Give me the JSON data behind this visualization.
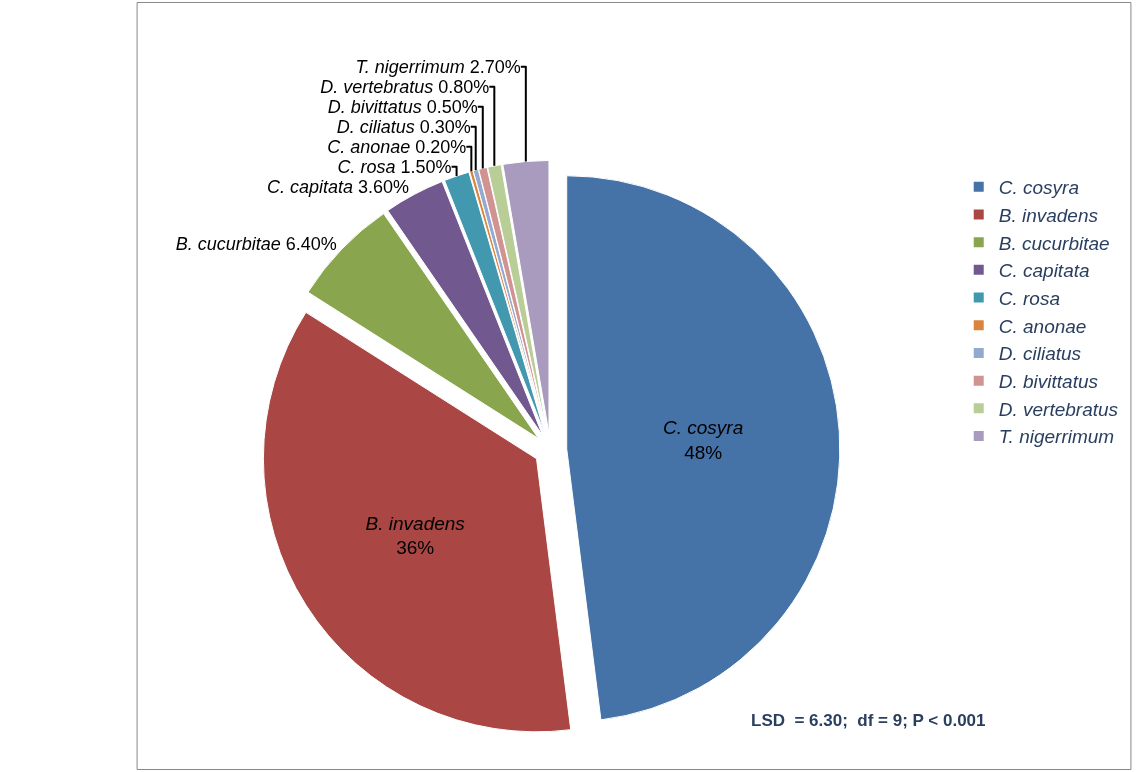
{
  "chart_data": {
    "type": "pie",
    "categories": [
      "C. cosyra",
      "B. invadens",
      "B. cucurbitae",
      "C. capitata",
      "C. rosa",
      "C. anonae",
      "D. ciliatus",
      "D. bivittatus",
      "D. vertebratus",
      "T. nigerrimum"
    ],
    "values": [
      48,
      36,
      6.4,
      3.6,
      1.5,
      0.2,
      0.3,
      0.5,
      0.8,
      2.7
    ],
    "value_labels": [
      "48%",
      "36%",
      "6.40%",
      "3.60%",
      "1.50%",
      "0.20%",
      "0.30%",
      "0.50%",
      "0.80%",
      "2.70%"
    ],
    "colors": [
      "#4572a7",
      "#aa4643",
      "#89a54e",
      "#71588f",
      "#4198af",
      "#db843d",
      "#93a9cf",
      "#d19392",
      "#b9cd96",
      "#a99bbd"
    ],
    "legend": "right",
    "annotations": [
      "LSD  = 6.30;  df = 9; P < 0.001"
    ]
  }
}
